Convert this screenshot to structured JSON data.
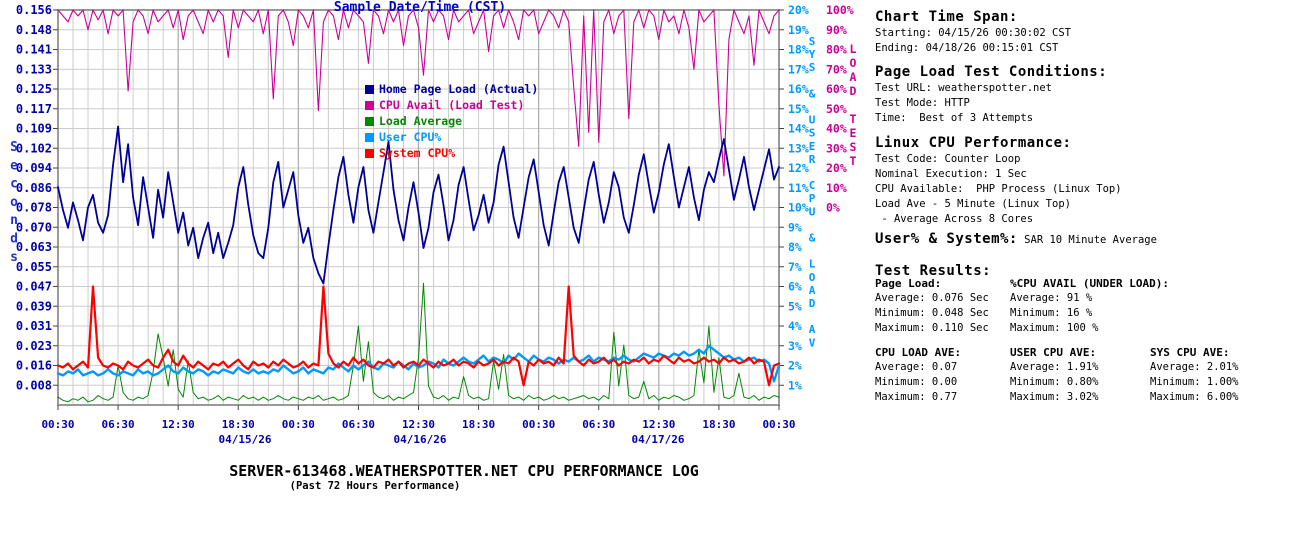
{
  "chart_data": {
    "type": "line",
    "title": "SERVER-613468.WEATHERSPOTTER.NET CPU PERFORMANCE LOG",
    "subtitle": "(Past 72 Hours Performance)",
    "xlabel": "Sample Date/Time (CST)",
    "ylabel": "Seconds",
    "y2label": "SYS & USER CPU & LOAD AV",
    "y3label": "LOAD TEST",
    "y_left_ticks": [
      "0.156",
      "0.148",
      "0.141",
      "0.133",
      "0.125",
      "0.117",
      "0.109",
      "0.102",
      "0.094",
      "0.086",
      "0.078",
      "0.070",
      "0.063",
      "0.055",
      "0.047",
      "0.039",
      "0.031",
      "0.023",
      "0.016",
      "0.008"
    ],
    "y_right_cpu_ticks": [
      "20%",
      "19%",
      "18%",
      "17%",
      "16%",
      "15%",
      "14%",
      "13%",
      "12%",
      "11%",
      "10%",
      "9%",
      "8%",
      "7%",
      "6%",
      "5%",
      "4%",
      "3%",
      "2%",
      "1%"
    ],
    "y_right_load_ticks": [
      "100%",
      "90%",
      "80%",
      "70%",
      "60%",
      "50%",
      "40%",
      "30%",
      "20%",
      "10%",
      "0%"
    ],
    "x_ticks": [
      "00:30",
      "06:30",
      "12:30",
      "18:30",
      "00:30",
      "06:30",
      "12:30",
      "18:30",
      "00:30",
      "06:30",
      "12:30",
      "18:30",
      "00:30"
    ],
    "x_dates": [
      "04/15/26",
      "04/16/26",
      "04/17/26"
    ],
    "axis_ranges": {
      "seconds": [
        0,
        0.156
      ],
      "cpu_pct": [
        0,
        20
      ],
      "load_test_pct": [
        0,
        100
      ]
    },
    "grid": true,
    "legend_position": "upper-middle-inside",
    "colors": {
      "seconds_label": "#2233cc",
      "left_ticks": "#0000aa",
      "cpu_axis": "#0099ff",
      "load_test_axis": "#cc0099",
      "x_title": "#0000cc",
      "grid_light": "#cccccc",
      "grid_major": "#aaaaaa",
      "frame": "#999999",
      "tick_marks": "#444444"
    },
    "series": [
      {
        "name": "Home Page Load (Actual)",
        "color": "#000099",
        "scale": "seconds",
        "width": 1.8,
        "values": [
          0.086,
          0.077,
          0.07,
          0.08,
          0.073,
          0.065,
          0.078,
          0.083,
          0.072,
          0.068,
          0.075,
          0.095,
          0.11,
          0.088,
          0.103,
          0.082,
          0.071,
          0.09,
          0.078,
          0.066,
          0.085,
          0.074,
          0.092,
          0.08,
          0.068,
          0.076,
          0.063,
          0.07,
          0.058,
          0.066,
          0.072,
          0.06,
          0.068,
          0.058,
          0.064,
          0.071,
          0.086,
          0.094,
          0.079,
          0.067,
          0.06,
          0.058,
          0.07,
          0.088,
          0.096,
          0.078,
          0.085,
          0.092,
          0.075,
          0.064,
          0.07,
          0.058,
          0.052,
          0.048,
          0.063,
          0.077,
          0.09,
          0.098,
          0.083,
          0.072,
          0.086,
          0.094,
          0.077,
          0.068,
          0.08,
          0.092,
          0.104,
          0.085,
          0.073,
          0.065,
          0.078,
          0.088,
          0.076,
          0.062,
          0.07,
          0.084,
          0.091,
          0.079,
          0.065,
          0.073,
          0.087,
          0.094,
          0.081,
          0.069,
          0.075,
          0.083,
          0.072,
          0.08,
          0.095,
          0.102,
          0.088,
          0.074,
          0.066,
          0.078,
          0.09,
          0.097,
          0.084,
          0.071,
          0.063,
          0.076,
          0.088,
          0.094,
          0.082,
          0.07,
          0.064,
          0.077,
          0.089,
          0.096,
          0.083,
          0.072,
          0.08,
          0.092,
          0.086,
          0.074,
          0.068,
          0.079,
          0.091,
          0.099,
          0.087,
          0.076,
          0.084,
          0.095,
          0.103,
          0.09,
          0.078,
          0.086,
          0.094,
          0.082,
          0.073,
          0.085,
          0.092,
          0.088,
          0.097,
          0.105,
          0.093,
          0.081,
          0.089,
          0.098,
          0.086,
          0.077,
          0.085,
          0.093,
          0.101,
          0.089,
          0.094
        ]
      },
      {
        "name": "CPU Avail (Load Test)",
        "color": "#cc0099",
        "scale": "load_test_pct",
        "width": 1.1,
        "values": [
          100,
          97,
          94,
          100,
          97,
          100,
          90,
          100,
          95,
          100,
          88,
          100,
          97,
          100,
          59,
          94,
          100,
          97,
          88,
          100,
          94,
          97,
          100,
          91,
          100,
          85,
          97,
          100,
          94,
          88,
          100,
          94,
          100,
          97,
          76,
          100,
          91,
          100,
          97,
          94,
          100,
          88,
          100,
          55,
          97,
          100,
          94,
          82,
          100,
          97,
          91,
          100,
          49,
          94,
          100,
          97,
          85,
          100,
          91,
          100,
          97,
          94,
          73,
          100,
          97,
          88,
          100,
          94,
          100,
          82,
          97,
          100,
          91,
          67,
          100,
          94,
          100,
          97,
          85,
          100,
          94,
          97,
          100,
          88,
          94,
          100,
          79,
          97,
          100,
          91,
          100,
          94,
          85,
          100,
          97,
          100,
          88,
          94,
          100,
          97,
          91,
          100,
          94,
          61,
          31,
          97,
          38,
          100,
          33,
          94,
          100,
          88,
          97,
          100,
          45,
          94,
          100,
          91,
          100,
          97,
          85,
          100,
          94,
          97,
          88,
          100,
          91,
          70,
          100,
          94,
          97,
          100,
          52,
          16,
          85,
          100,
          94,
          88,
          97,
          72,
          100,
          94,
          88,
          97,
          100
        ]
      },
      {
        "name": "Load Average",
        "color": "#008800",
        "scale": "load_ave",
        "width": 1,
        "values": [
          0.05,
          0.03,
          0.02,
          0.04,
          0.03,
          0.05,
          0.02,
          0.03,
          0.06,
          0.04,
          0.03,
          0.05,
          0.25,
          0.08,
          0.04,
          0.03,
          0.05,
          0.04,
          0.06,
          0.21,
          0.45,
          0.3,
          0.12,
          0.35,
          0.1,
          0.05,
          0.28,
          0.08,
          0.04,
          0.05,
          0.03,
          0.04,
          0.06,
          0.03,
          0.05,
          0.04,
          0.03,
          0.06,
          0.04,
          0.05,
          0.03,
          0.05,
          0.03,
          0.04,
          0.06,
          0.04,
          0.03,
          0.05,
          0.04,
          0.03,
          0.05,
          0.04,
          0.06,
          0.03,
          0.04,
          0.05,
          0.03,
          0.04,
          0.06,
          0.25,
          0.5,
          0.15,
          0.4,
          0.08,
          0.05,
          0.04,
          0.06,
          0.03,
          0.05,
          0.04,
          0.06,
          0.08,
          0.3,
          0.77,
          0.12,
          0.05,
          0.04,
          0.06,
          0.03,
          0.05,
          0.04,
          0.18,
          0.06,
          0.04,
          0.05,
          0.03,
          0.04,
          0.28,
          0.1,
          0.32,
          0.06,
          0.04,
          0.05,
          0.03,
          0.06,
          0.04,
          0.05,
          0.03,
          0.04,
          0.06,
          0.04,
          0.05,
          0.03,
          0.04,
          0.05,
          0.06,
          0.04,
          0.05,
          0.03,
          0.06,
          0.04,
          0.46,
          0.12,
          0.38,
          0.06,
          0.04,
          0.05,
          0.15,
          0.04,
          0.06,
          0.03,
          0.05,
          0.04,
          0.06,
          0.05,
          0.03,
          0.04,
          0.06,
          0.35,
          0.14,
          0.5,
          0.08,
          0.3,
          0.05,
          0.04,
          0.06,
          0.2,
          0.05,
          0.04,
          0.06,
          0.03,
          0.05,
          0.04,
          0.06,
          0.05
        ]
      },
      {
        "name": "User CPU%",
        "color": "#0099ff",
        "scale": "cpu_pct",
        "width": 2.4,
        "values": [
          1.6,
          1.5,
          1.7,
          1.6,
          1.8,
          1.5,
          1.6,
          1.7,
          1.5,
          1.6,
          1.8,
          1.6,
          1.5,
          1.7,
          1.6,
          1.5,
          1.8,
          1.6,
          1.7,
          1.5,
          1.6,
          1.8,
          2.0,
          1.7,
          1.6,
          1.9,
          1.7,
          1.6,
          1.8,
          1.7,
          1.5,
          1.7,
          1.6,
          1.8,
          1.7,
          1.6,
          1.9,
          1.7,
          1.6,
          1.8,
          1.6,
          1.7,
          1.6,
          1.8,
          1.7,
          2.0,
          1.8,
          1.6,
          1.7,
          1.9,
          1.6,
          1.8,
          1.7,
          1.6,
          1.9,
          1.8,
          2.1,
          1.9,
          1.7,
          2.0,
          1.8,
          2.0,
          2.2,
          1.9,
          1.8,
          2.1,
          2.0,
          1.9,
          2.2,
          2.0,
          1.8,
          2.1,
          1.9,
          2.0,
          2.2,
          2.1,
          1.9,
          2.3,
          2.1,
          2.0,
          2.2,
          2.4,
          2.2,
          2.1,
          2.3,
          2.5,
          2.2,
          2.4,
          2.3,
          2.1,
          2.5,
          2.3,
          2.6,
          2.4,
          2.2,
          2.5,
          2.3,
          2.2,
          2.4,
          2.3,
          2.1,
          2.3,
          2.2,
          2.4,
          2.2,
          2.3,
          2.5,
          2.2,
          2.4,
          2.3,
          2.2,
          2.4,
          2.3,
          2.5,
          2.3,
          2.2,
          2.4,
          2.6,
          2.5,
          2.4,
          2.6,
          2.5,
          2.4,
          2.6,
          2.5,
          2.7,
          2.5,
          2.6,
          2.8,
          2.6,
          3.0,
          2.8,
          2.6,
          2.4,
          2.5,
          2.3,
          2.4,
          2.2,
          2.3,
          2.4,
          2.2,
          2.3,
          2.1,
          1.2,
          2.0
        ]
      },
      {
        "name": "System CPU%",
        "color": "#ff0000",
        "scale": "cpu_pct",
        "width": 2.2,
        "values": [
          2.0,
          1.9,
          2.1,
          1.8,
          2.0,
          2.2,
          1.9,
          6.0,
          2.4,
          2.0,
          1.9,
          2.1,
          2.0,
          1.8,
          2.2,
          2.0,
          1.9,
          2.1,
          2.3,
          2.0,
          1.9,
          2.4,
          2.8,
          2.2,
          2.0,
          2.5,
          2.1,
          1.9,
          2.2,
          2.0,
          1.8,
          2.1,
          2.0,
          2.2,
          1.9,
          2.1,
          2.3,
          2.0,
          1.8,
          2.2,
          2.0,
          2.1,
          1.9,
          2.2,
          2.0,
          2.3,
          2.1,
          1.9,
          2.0,
          2.2,
          1.9,
          2.1,
          2.0,
          6.0,
          2.6,
          2.1,
          1.9,
          2.2,
          2.0,
          2.4,
          2.1,
          2.3,
          2.0,
          1.9,
          2.2,
          2.1,
          2.3,
          2.0,
          2.2,
          1.9,
          2.1,
          2.2,
          2.0,
          2.3,
          2.1,
          1.9,
          2.2,
          2.0,
          2.1,
          2.3,
          2.0,
          2.2,
          2.1,
          1.9,
          2.2,
          2.0,
          2.1,
          2.3,
          2.0,
          2.2,
          2.1,
          2.4,
          2.2,
          1.0,
          2.2,
          2.0,
          2.3,
          2.1,
          2.2,
          2.0,
          2.4,
          2.1,
          6.0,
          2.5,
          2.2,
          2.0,
          2.3,
          2.1,
          2.2,
          2.4,
          2.1,
          2.3,
          2.0,
          2.2,
          2.1,
          2.3,
          2.2,
          2.4,
          2.1,
          2.3,
          2.2,
          2.5,
          2.3,
          2.1,
          2.4,
          2.2,
          2.3,
          2.1,
          2.2,
          2.4,
          2.2,
          2.3,
          2.1,
          2.4,
          2.2,
          2.3,
          2.1,
          2.2,
          2.4,
          2.1,
          2.3,
          2.2,
          1.0,
          2.0,
          2.1
        ]
      }
    ]
  },
  "info_panel": {
    "sections": [
      {
        "heading": "Chart Time Span:",
        "lines": [
          "Starting: 04/15/26 00:30:02 CST",
          "Ending: 04/18/26 00:15:01 CST"
        ]
      },
      {
        "heading": "Page Load Test Conditions:",
        "lines": [
          "Test URL: weatherspotter.net",
          "Test Mode: HTTP",
          "Time:  Best of 3 Attempts"
        ]
      },
      {
        "heading": "Linux CPU Performance:",
        "lines": [
          "Test Code: Counter Loop",
          "Nominal Execution: 1 Sec",
          "CPU Available:  PHP Process (Linux Top)",
          "Load Ave - 5 Minute (Linux Top)",
          " - Average Across 8 Cores"
        ]
      },
      {
        "heading": "User% & System%:",
        "inline": " SAR 10 Minute Average",
        "lines": []
      },
      {
        "heading": "Test Results:",
        "lines": []
      }
    ],
    "results_row1": [
      {
        "title": "Page Load:",
        "lines": [
          "Average: 0.076 Sec",
          "Minimum: 0.048 Sec",
          "Maximum: 0.110 Sec"
        ]
      },
      {
        "title": "%CPU AVAIL (UNDER LOAD):",
        "lines": [
          "Average: 91 %",
          "Minimum: 16 %",
          "Maximum: 100 %"
        ]
      }
    ],
    "results_row2": [
      {
        "title": "CPU LOAD AVE:",
        "lines": [
          "Average: 0.07",
          "Minimum: 0.00",
          "Maximum: 0.77"
        ]
      },
      {
        "title": "USER CPU AVE:",
        "lines": [
          "Average: 1.91%",
          "Minimum: 0.80%",
          "Maximum: 3.02%"
        ]
      },
      {
        "title": "SYS CPU AVE:",
        "lines": [
          "Average: 2.01%",
          "Minimum: 1.00%",
          "Maximum: 6.00%"
        ]
      }
    ]
  }
}
